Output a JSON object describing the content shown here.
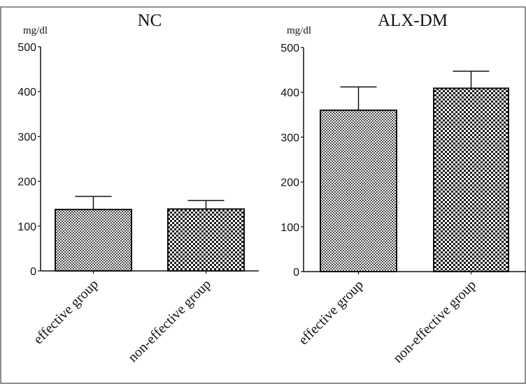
{
  "chart_data": [
    {
      "type": "bar",
      "title": "NC",
      "unit": "mg/dl",
      "categories": [
        "effective group",
        "non-effective group"
      ],
      "values": [
        137,
        138
      ],
      "errors": [
        29,
        19
      ],
      "ylim": [
        0,
        500
      ],
      "yticks": [
        "0",
        "100",
        "200",
        "300",
        "400",
        "500"
      ],
      "legend": "none",
      "grid": false
    },
    {
      "type": "bar",
      "title": "ALX-DM",
      "unit": "mg/dl",
      "categories": [
        "effective group",
        "non-effective group"
      ],
      "values": [
        360,
        409
      ],
      "errors": [
        52,
        38
      ],
      "ylim": [
        0,
        500
      ],
      "yticks": [
        "0",
        "100",
        "200",
        "300",
        "400",
        "500"
      ],
      "legend": "none",
      "grid": false
    }
  ]
}
